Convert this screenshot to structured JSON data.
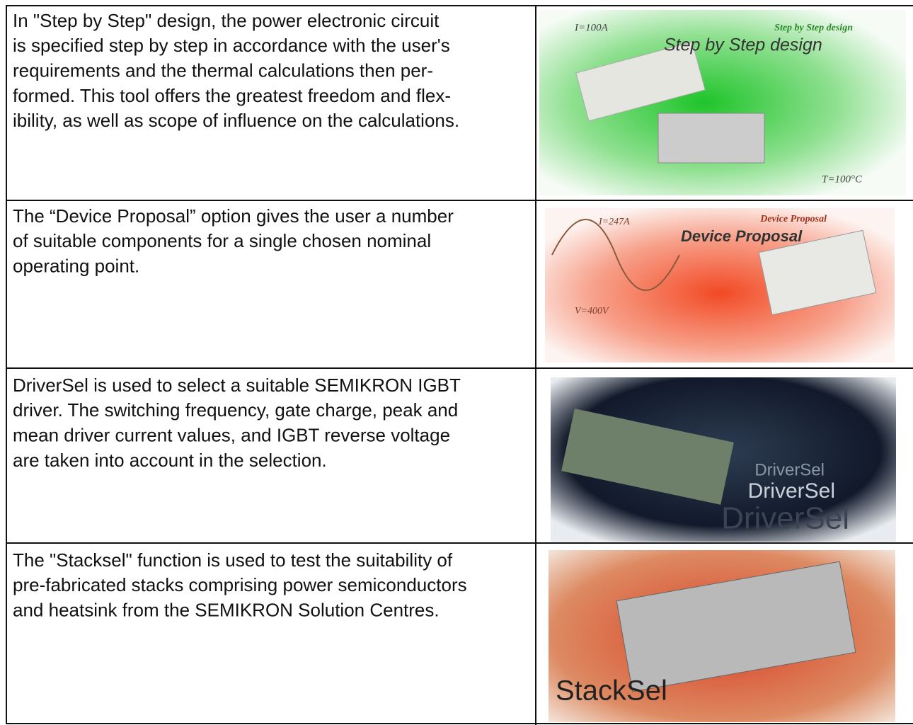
{
  "table": {
    "rows": [
      {
        "lines": [
          "In \"Step by Step\" design, the power electronic circuit",
          "is specified step by step in accordance with the user's",
          "requirements and the thermal calculations then per-",
          "formed. This tool offers the greatest freedom and flex-",
          "ibility, as well as scope of influence on the calculations."
        ],
        "image": {
          "labels": [
            "I=100A",
            "Step by Step design",
            "Step by Step design",
            "T=100°C"
          ]
        }
      },
      {
        "lines": [
          "The “Device Proposal” option gives the user a number",
          "of suitable components for a single chosen nominal",
          "operating point."
        ],
        "image": {
          "labels": [
            "I=247A",
            "Device Proposal",
            "Device Proposal",
            "V=400V"
          ]
        }
      },
      {
        "lines": [
          "DriverSel is used to select a suitable SEMIKRON IGBT",
          "driver. The switching frequency, gate charge, peak and",
          "mean driver current values, and IGBT reverse voltage",
          "are taken into account in the selection."
        ],
        "image": {
          "labels": [
            "DriverSel",
            "DriverSel",
            "DriverSel"
          ]
        }
      },
      {
        "lines": [
          "The \"Stacksel\" function is used to test the suitability of",
          "pre-fabricated stacks comprising power semiconductors",
          "and heatsink from the SEMIKRON Solution Centres."
        ],
        "image": {
          "labels": [
            "StackSel"
          ]
        }
      }
    ]
  }
}
